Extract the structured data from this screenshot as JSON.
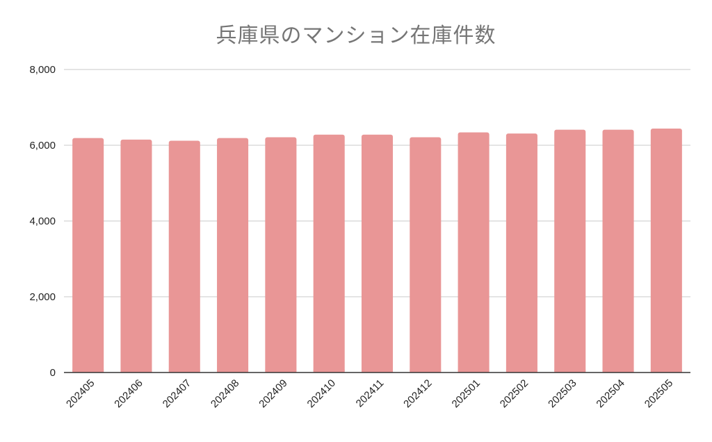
{
  "chart_data": {
    "type": "bar",
    "title": "兵庫県のマンション在庫件数",
    "xlabel": "",
    "ylabel": "",
    "categories": [
      "202405",
      "202406",
      "202407",
      "202408",
      "202409",
      "202410",
      "202411",
      "202412",
      "202501",
      "202502",
      "202503",
      "202504",
      "202505"
    ],
    "values": [
      6190,
      6150,
      6120,
      6190,
      6210,
      6280,
      6280,
      6210,
      6340,
      6310,
      6410,
      6410,
      6440
    ],
    "ylim": [
      0,
      8000
    ],
    "yticks": [
      0,
      2000,
      4000,
      6000,
      8000
    ],
    "ytick_labels": [
      "0",
      "2,000",
      "4,000",
      "6,000",
      "8,000"
    ],
    "grid": true,
    "legend": "none",
    "bar_color": "#e99696",
    "grid_color": "#c8c8c8",
    "axis_color": "#333333",
    "title_color": "#757575"
  }
}
